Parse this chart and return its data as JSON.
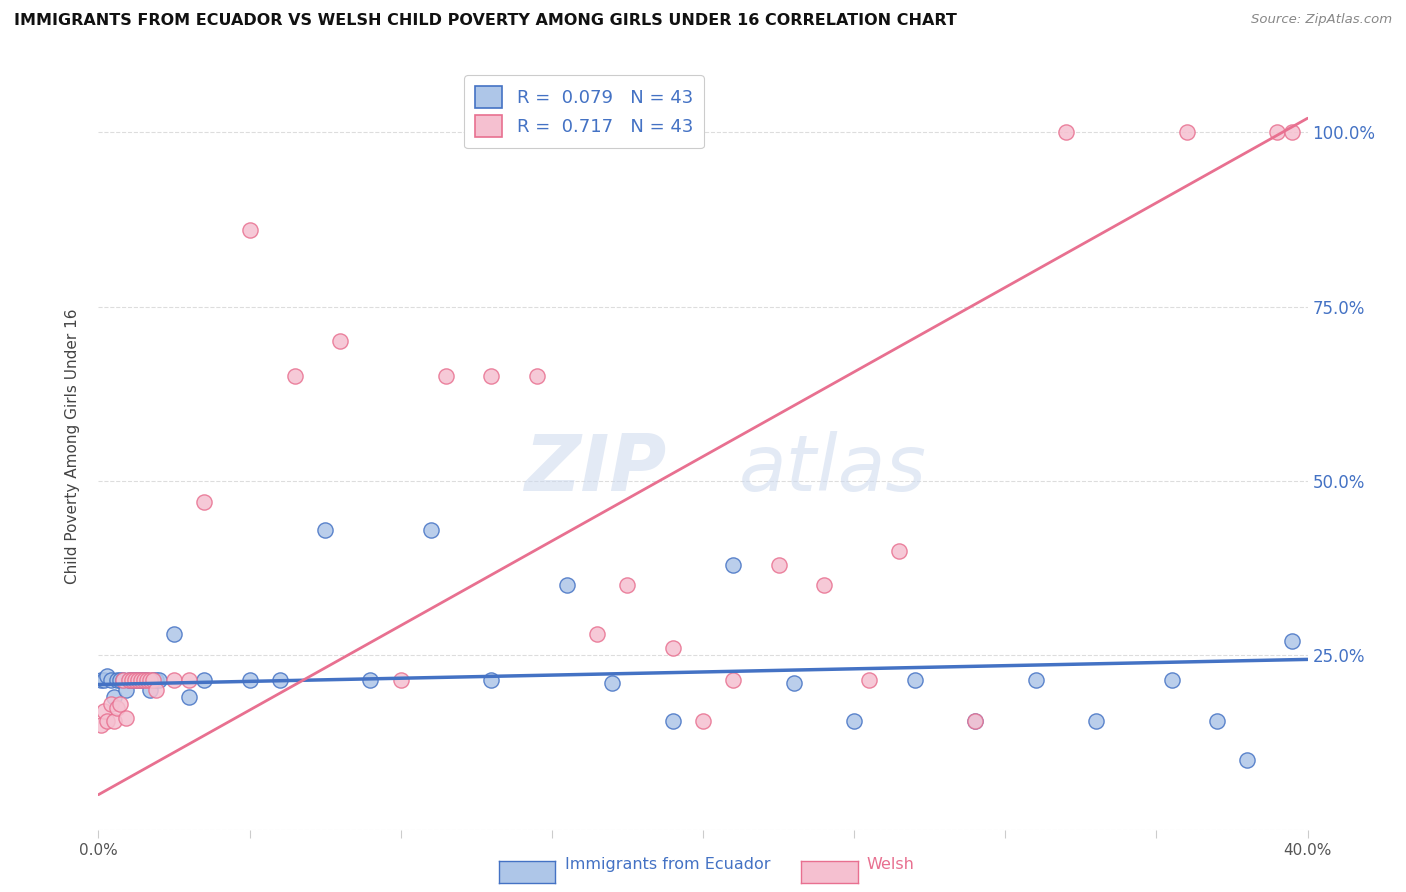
{
  "title": "IMMIGRANTS FROM ECUADOR VS WELSH CHILD POVERTY AMONG GIRLS UNDER 16 CORRELATION CHART",
  "source": "Source: ZipAtlas.com",
  "ylabel": "Child Poverty Among Girls Under 16",
  "xmin": 0.0,
  "xmax": 0.4,
  "ymin": 0.0,
  "ymax": 1.1,
  "yticks": [
    0.0,
    0.25,
    0.5,
    0.75,
    1.0
  ],
  "ytick_labels": [
    "",
    "25.0%",
    "50.0%",
    "75.0%",
    "100.0%"
  ],
  "xticks": [
    0.0,
    0.05,
    0.1,
    0.15,
    0.2,
    0.25,
    0.3,
    0.35,
    0.4
  ],
  "xtick_labels": [
    "0.0%",
    "",
    "",
    "",
    "",
    "",
    "",
    "",
    "40.0%"
  ],
  "series1_name": "Immigrants from Ecuador",
  "series1_color": "#aec6e8",
  "series1_edge_color": "#4472c4",
  "series1_line_color": "#4472c4",
  "series1_R": "0.079",
  "series1_N": "43",
  "series2_name": "Welsh",
  "series2_color": "#f5c0d0",
  "series2_edge_color": "#e87090",
  "series2_line_color": "#e87090",
  "series2_R": "0.717",
  "series2_N": "43",
  "watermark_zip": "ZIP",
  "watermark_atlas": "atlas",
  "background_color": "#ffffff",
  "series1_x": [
    0.001,
    0.002,
    0.003,
    0.004,
    0.005,
    0.006,
    0.007,
    0.008,
    0.009,
    0.01,
    0.011,
    0.012,
    0.013,
    0.014,
    0.015,
    0.016,
    0.017,
    0.018,
    0.019,
    0.02,
    0.025,
    0.03,
    0.035,
    0.05,
    0.06,
    0.075,
    0.09,
    0.11,
    0.13,
    0.155,
    0.17,
    0.19,
    0.21,
    0.23,
    0.25,
    0.27,
    0.29,
    0.31,
    0.33,
    0.355,
    0.37,
    0.395,
    0.38
  ],
  "series1_y": [
    0.215,
    0.215,
    0.22,
    0.215,
    0.19,
    0.215,
    0.215,
    0.215,
    0.2,
    0.215,
    0.215,
    0.215,
    0.215,
    0.215,
    0.215,
    0.215,
    0.2,
    0.215,
    0.215,
    0.215,
    0.28,
    0.19,
    0.215,
    0.215,
    0.215,
    0.43,
    0.215,
    0.43,
    0.215,
    0.35,
    0.21,
    0.155,
    0.38,
    0.21,
    0.155,
    0.215,
    0.155,
    0.215,
    0.155,
    0.215,
    0.155,
    0.27,
    0.1
  ],
  "series2_x": [
    0.001,
    0.002,
    0.003,
    0.004,
    0.005,
    0.006,
    0.007,
    0.008,
    0.009,
    0.01,
    0.011,
    0.012,
    0.013,
    0.014,
    0.015,
    0.016,
    0.017,
    0.018,
    0.019,
    0.025,
    0.03,
    0.035,
    0.05,
    0.065,
    0.08,
    0.1,
    0.115,
    0.13,
    0.145,
    0.165,
    0.175,
    0.19,
    0.2,
    0.21,
    0.225,
    0.24,
    0.255,
    0.265,
    0.29,
    0.32,
    0.36,
    0.39,
    0.395
  ],
  "series2_y": [
    0.15,
    0.17,
    0.155,
    0.18,
    0.155,
    0.175,
    0.18,
    0.215,
    0.16,
    0.215,
    0.215,
    0.215,
    0.215,
    0.215,
    0.215,
    0.215,
    0.215,
    0.215,
    0.2,
    0.215,
    0.215,
    0.47,
    0.86,
    0.65,
    0.7,
    0.215,
    0.65,
    0.65,
    0.65,
    0.28,
    0.35,
    0.26,
    0.155,
    0.215,
    0.38,
    0.35,
    0.215,
    0.4,
    0.155,
    1.0,
    1.0,
    1.0,
    1.0
  ],
  "line1_x0": 0.0,
  "line1_x1": 0.4,
  "line1_y0": 0.208,
  "line1_y1": 0.244,
  "line2_x0": 0.0,
  "line2_x1": 0.4,
  "line2_y0": 0.05,
  "line2_y1": 1.02
}
